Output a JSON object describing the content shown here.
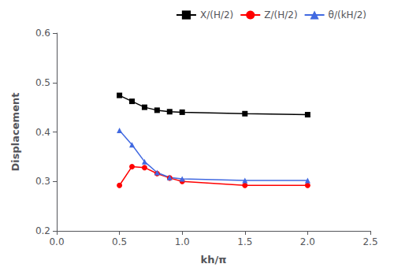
{
  "chart_data": {
    "type": "line",
    "xlabel": "kh/π",
    "ylabel": "Displacement",
    "xlim": [
      0.0,
      2.5
    ],
    "ylim": [
      0.2,
      0.6
    ],
    "xticks": [
      {
        "value": 0.0,
        "label": "0.0"
      },
      0.5,
      {
        "value": 1.0,
        "label": "1.0"
      },
      1.5,
      {
        "value": 2.0,
        "label": "2.0"
      },
      2.5
    ],
    "yticks": [
      0.2,
      0.3,
      0.4,
      0.5,
      0.6
    ],
    "x": [
      0.5,
      0.6,
      0.7,
      0.8,
      0.9,
      1.0,
      1.5,
      2.0
    ],
    "series": [
      {
        "name": "X/(H/2)",
        "color": "#000000",
        "marker": "square",
        "values": [
          0.474,
          0.462,
          0.45,
          0.444,
          0.441,
          0.44,
          0.437,
          0.435
        ]
      },
      {
        "name": "Z/(H/2)",
        "color": "#ff0000",
        "marker": "circle",
        "values": [
          0.292,
          0.33,
          0.328,
          0.316,
          0.307,
          0.3,
          0.292,
          0.292
        ]
      },
      {
        "name": "θ/(kH/2)",
        "color": "#4169e1",
        "marker": "triangle",
        "values": [
          0.403,
          0.374,
          0.34,
          0.318,
          0.308,
          0.305,
          0.302,
          0.302
        ]
      }
    ],
    "legend": "upper right",
    "grid": false
  }
}
